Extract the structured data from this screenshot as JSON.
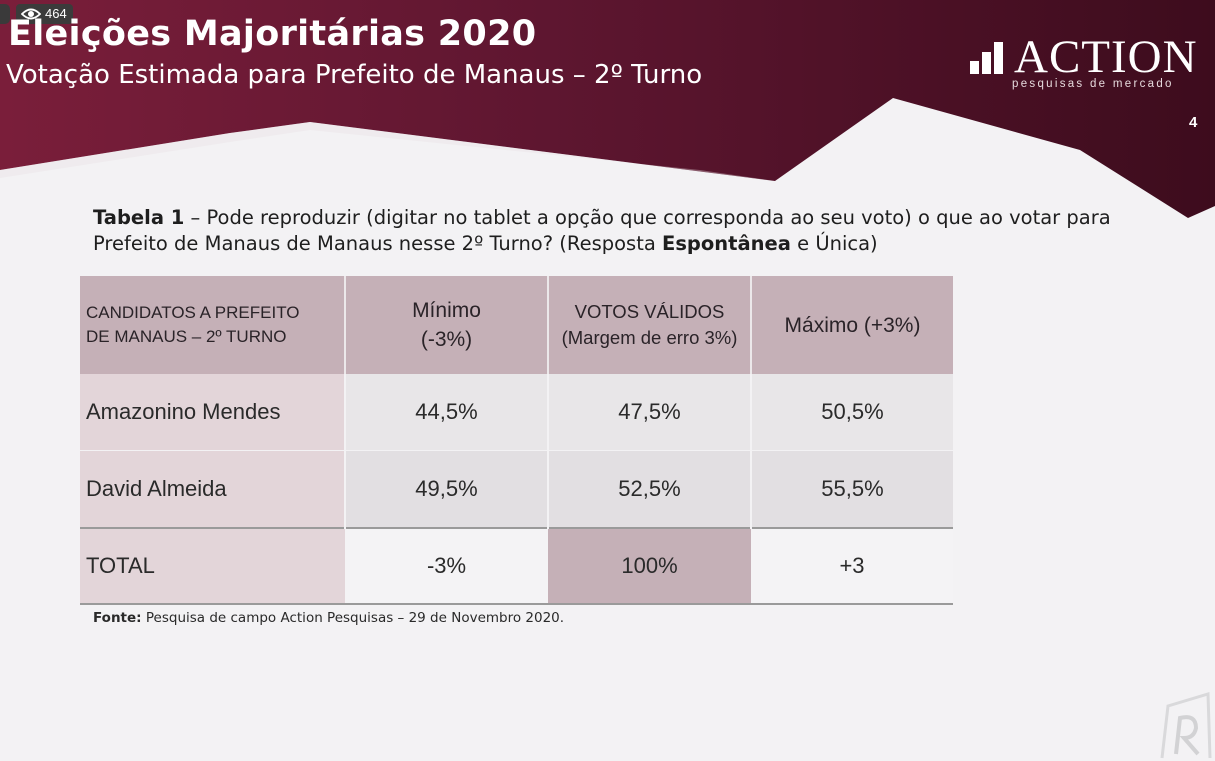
{
  "overlay": {
    "view_count": "464"
  },
  "header": {
    "title": "Eleições Majoritárias 2020",
    "subtitle": "Votação Estimada para Prefeito de Manaus – 2º Turno",
    "page_number": "4"
  },
  "logo": {
    "name": "ACTION",
    "tagline": "pesquisas de mercado"
  },
  "question": {
    "label": "Tabela 1",
    "text_1": " – Pode reproduzir (digitar no tablet a opção que corresponda ao seu voto) o que ao votar para Prefeito de Manaus de Manaus nesse 2º Turno? (Resposta ",
    "emphasis": "Espontânea",
    "text_2": " e Única)"
  },
  "table": {
    "headers": {
      "candidate_line1": "CANDIDATOS A PREFEITO",
      "candidate_line2": "DE MANAUS – 2º TURNO",
      "min_line1": "Mínimo",
      "min_line2": "(-3%)",
      "valid_line1": "VOTOS VÁLIDOS",
      "valid_line2": "(Margem de erro 3%)",
      "max": "Máximo (+3%)"
    },
    "rows": [
      {
        "candidate": "Amazonino Mendes",
        "min": "44,5%",
        "valid": "47,5%",
        "max": "50,5%"
      },
      {
        "candidate": "David Almeida",
        "min": "49,5%",
        "valid": "52,5%",
        "max": "55,5%"
      }
    ],
    "total": {
      "label": "TOTAL",
      "min": "-3%",
      "valid": "100%",
      "max": "+3"
    }
  },
  "source": {
    "label": "Fonte:",
    "text": " Pesquisa de campo Action Pesquisas – 29 de Novembro 2020."
  },
  "colors": {
    "header_dark": "#4a0f22",
    "header_mid": "#7a1e3a",
    "table_header": "#c5b0b7",
    "candidate_cell": "#e3d5d9"
  }
}
